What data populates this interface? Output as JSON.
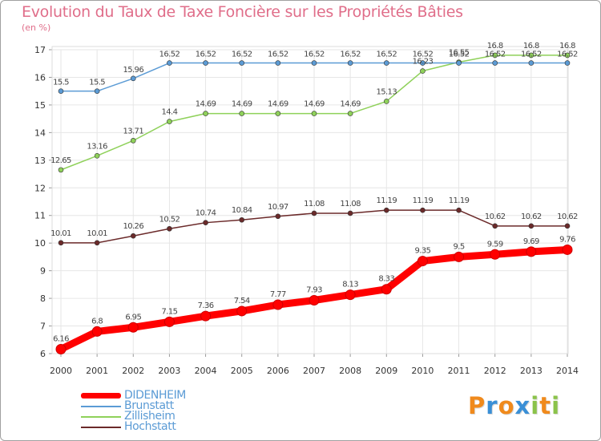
{
  "header": {
    "title": "Evolution du Taux de Taxe Foncière sur les Propriétés Bâties",
    "unit": "(en %)"
  },
  "chart_data": {
    "type": "line",
    "title": "Evolution du Taux de Taxe Foncière sur les Propriétés Bâties",
    "ylabel": "(en %)",
    "xlabel": "",
    "x": [
      "2000",
      "2001",
      "2002",
      "2003",
      "2004",
      "2005",
      "2006",
      "2007",
      "2008",
      "2009",
      "2010",
      "2011",
      "2012",
      "2013",
      "2014"
    ],
    "ylim": [
      6,
      17
    ],
    "yticks": [
      6,
      7,
      8,
      9,
      10,
      11,
      12,
      13,
      14,
      15,
      16,
      17
    ],
    "series": [
      {
        "name": "DIDENHEIM",
        "color": "#ff0000",
        "values": [
          6.16,
          6.8,
          6.95,
          7.15,
          7.36,
          7.54,
          7.77,
          7.93,
          8.13,
          8.33,
          9.35,
          9.5,
          9.59,
          9.69,
          9.76
        ]
      },
      {
        "name": "Brunstatt",
        "color": "#5b9bd5",
        "values": [
          15.5,
          15.5,
          15.96,
          16.52,
          16.52,
          16.52,
          16.52,
          16.52,
          16.52,
          16.52,
          16.52,
          16.52,
          16.52,
          16.52,
          16.52
        ]
      },
      {
        "name": "Zillisheim",
        "color": "#8fd15a",
        "values": [
          12.65,
          13.16,
          13.71,
          14.4,
          14.69,
          14.69,
          14.69,
          14.69,
          14.69,
          15.13,
          16.23,
          16.55,
          16.8,
          16.8,
          16.8
        ]
      },
      {
        "name": "Hochstatt",
        "color": "#6b2a2a",
        "values": [
          10.01,
          10.01,
          10.26,
          10.52,
          10.74,
          10.84,
          10.97,
          11.08,
          11.08,
          11.19,
          11.19,
          11.19,
          10.62,
          10.62,
          10.62
        ]
      }
    ],
    "legend_position": "bottom-left"
  },
  "legend": {
    "items": [
      {
        "label": "DIDENHEIM",
        "color": "#ff0000"
      },
      {
        "label": "Brunstatt",
        "color": "#5b9bd5"
      },
      {
        "label": "Zillisheim",
        "color": "#8fd15a"
      },
      {
        "label": "Hochstatt",
        "color": "#6b2a2a"
      }
    ]
  },
  "logo": {
    "letters": [
      "P",
      "r",
      "o",
      "x",
      "i",
      "t",
      "i"
    ],
    "colors": [
      "#f08a1c",
      "#3a8fd6",
      "#f08a1c",
      "#3a8fd6",
      "#8bc34a",
      "#f08a1c",
      "#8bc34a"
    ]
  }
}
